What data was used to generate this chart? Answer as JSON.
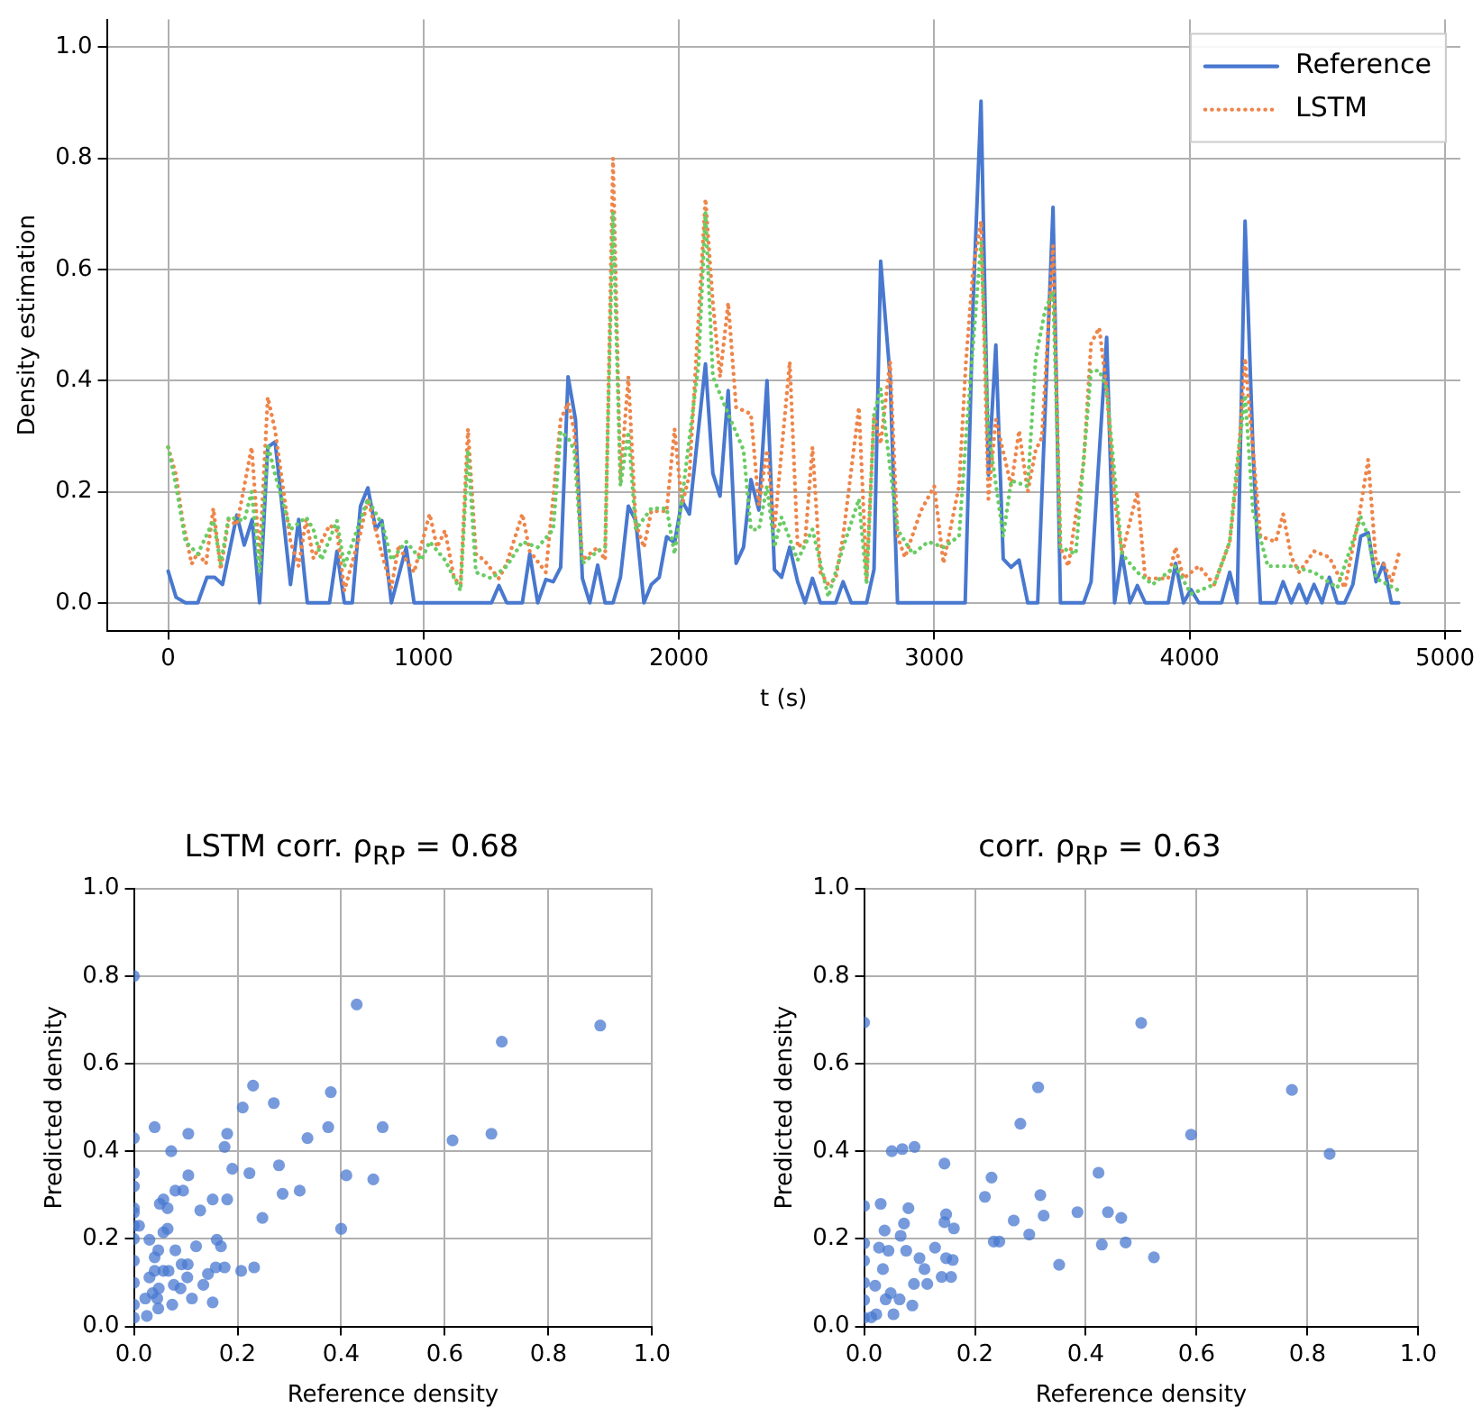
{
  "chart_data": [
    {
      "type": "line",
      "xlabel": "t (s)",
      "ylabel": "Density estimation",
      "xlim": [
        -240,
        5060
      ],
      "ylim": [
        -0.05,
        1.05
      ],
      "xticks": [
        0,
        1000,
        2000,
        3000,
        4000,
        5000
      ],
      "yticks": [
        {
          "value": 0,
          "label": "0.0"
        },
        {
          "value": 0.2,
          "label": "0.2"
        },
        {
          "value": 0.4,
          "label": "0.4"
        },
        {
          "value": 0.6,
          "label": "0.6"
        },
        {
          "value": 0.8,
          "label": "0.8"
        },
        {
          "value": 1,
          "label": "1.0"
        }
      ],
      "grid": true,
      "legend": "top right",
      "marker": "none",
      "series": [
        {
          "name": "Reference",
          "color": "#4878cf",
          "line_style": "solid",
          "x": [
            0,
            31,
            68,
            116,
            152,
            182,
            213,
            269,
            298,
            329,
            358,
            390,
            419,
            479,
            511,
            545,
            632,
            661,
            690,
            721,
            753,
            782,
            813,
            837,
            874,
            932,
            963,
            1266,
            1295,
            1326,
            1387,
            1416,
            1447,
            1479,
            1508,
            1537,
            1566,
            1595,
            1622,
            1651,
            1682,
            1711,
            1742,
            1771,
            1802,
            1831,
            1863,
            1892,
            1923,
            1952,
            1983,
            2012,
            2041,
            2104,
            2133,
            2161,
            2193,
            2224,
            2253,
            2282,
            2313,
            2345,
            2374,
            2402,
            2434,
            2465,
            2494,
            2523,
            2554,
            2614,
            2643,
            2675,
            2735,
            2764,
            2790,
            2827,
            2856,
            3121,
            3152,
            3183,
            3212,
            3241,
            3270,
            3301,
            3332,
            3366,
            3405,
            3465,
            3494,
            3585,
            3614,
            3675,
            3706,
            3735,
            3766,
            3795,
            3826,
            3916,
            3945,
            3976,
            4005,
            4036,
            4125,
            4157,
            4186,
            4217,
            4248,
            4277,
            4337,
            4366,
            4398,
            4429,
            4458,
            4487,
            4518,
            4547,
            4578,
            4607,
            4639,
            4670,
            4699,
            4730,
            4759,
            4790,
            4819
          ],
          "values": [
            0.057,
            0.01,
            0,
            0,
            0.046,
            0.046,
            0.033,
            0.158,
            0.104,
            0.15,
            0,
            0.28,
            0.29,
            0.033,
            0.15,
            0,
            0,
            0.093,
            0,
            0,
            0.174,
            0.207,
            0.132,
            0.148,
            0,
            0.1,
            0,
            0,
            0.031,
            0,
            0,
            0.088,
            0,
            0.042,
            0.038,
            0.064,
            0.407,
            0.33,
            0.044,
            0,
            0.068,
            0,
            0,
            0.046,
            0.174,
            0.148,
            0,
            0.033,
            0.046,
            0.119,
            0.108,
            0.184,
            0.16,
            0.43,
            0.233,
            0.192,
            0.382,
            0.071,
            0.1,
            0.222,
            0.167,
            0.4,
            0.06,
            0.046,
            0.1,
            0.038,
            0,
            0.044,
            0,
            0,
            0.038,
            0,
            0,
            0.06,
            0.615,
            0.407,
            0,
            0,
            0.54,
            0.903,
            0.23,
            0.464,
            0.079,
            0.064,
            0.077,
            0,
            0,
            0.712,
            0,
            0,
            0.038,
            0.478,
            0,
            0.088,
            0,
            0.031,
            0,
            0,
            0.071,
            0,
            0.024,
            0,
            0,
            0.055,
            0,
            0.687,
            0.275,
            0,
            0,
            0.038,
            0,
            0.033,
            0,
            0.033,
            0,
            0.046,
            0,
            0,
            0.033,
            0.12,
            0.126,
            0.038,
            0.071,
            0,
            0
          ]
        },
        {
          "name": "LSTM",
          "color": "#ee854a",
          "line_style": "dotted",
          "x": [
            0,
            31,
            56,
            92,
            116,
            148,
            177,
            206,
            237,
            269,
            327,
            358,
            390,
            419,
            479,
            511,
            540,
            569,
            632,
            661,
            690,
            753,
            782,
            830,
            874,
            903,
            932,
            963,
            1024,
            1053,
            1084,
            1120,
            1145,
            1174,
            1205,
            1237,
            1266,
            1295,
            1326,
            1387,
            1416,
            1479,
            1537,
            1566,
            1590,
            1622,
            1682,
            1711,
            1742,
            1771,
            1802,
            1831,
            1863,
            1892,
            1952,
            1983,
            2012,
            2041,
            2104,
            2133,
            2161,
            2193,
            2224,
            2282,
            2313,
            2345,
            2374,
            2434,
            2465,
            2494,
            2523,
            2554,
            2585,
            2614,
            2643,
            2705,
            2735,
            2764,
            2790,
            2827,
            2856,
            2885,
            2947,
            3000,
            3036,
            3097,
            3124,
            3152,
            3183,
            3212,
            3241,
            3301,
            3332,
            3366,
            3397,
            3421,
            3465,
            3494,
            3525,
            3585,
            3614,
            3646,
            3675,
            3706,
            3735,
            3795,
            3826,
            3916,
            3945,
            3976,
            4036,
            4096,
            4157,
            4188,
            4217,
            4248,
            4277,
            4337,
            4366,
            4398,
            4429,
            4487,
            4547,
            4607,
            4663,
            4699,
            4730,
            4759,
            4790,
            4819
          ],
          "values": [
            0.28,
            0.23,
            0.15,
            0.07,
            0.09,
            0.07,
            0.17,
            0.06,
            0.15,
            0.14,
            0.28,
            0.08,
            0.37,
            0.31,
            0.11,
            0.066,
            0.15,
            0.08,
            0.14,
            0.13,
            0.022,
            0.126,
            0.187,
            0.1,
            0.027,
            0.104,
            0.077,
            0.055,
            0.16,
            0.1,
            0.13,
            0.044,
            0.033,
            0.313,
            0.088,
            0.077,
            0.06,
            0.044,
            0.071,
            0.16,
            0.093,
            0.055,
            0.33,
            0.36,
            0.31,
            0.077,
            0.1,
            0.077,
            0.8,
            0.22,
            0.407,
            0.143,
            0.1,
            0.165,
            0.165,
            0.313,
            0.176,
            0.23,
            0.727,
            0.54,
            0.407,
            0.54,
            0.352,
            0.34,
            0.176,
            0.275,
            0.132,
            0.434,
            0.1,
            0.11,
            0.28,
            0.055,
            0.033,
            0.044,
            0.12,
            0.352,
            0.044,
            0.34,
            0.286,
            0.434,
            0.12,
            0.082,
            0.165,
            0.21,
            0.071,
            0.21,
            0.434,
            0.6,
            0.687,
            0.187,
            0.33,
            0.21,
            0.31,
            0.2,
            0.275,
            0.297,
            0.643,
            0.1,
            0.066,
            0.253,
            0.467,
            0.495,
            0.385,
            0.187,
            0.088,
            0.2,
            0.044,
            0.044,
            0.1,
            0.044,
            0.066,
            0.033,
            0.11,
            0.242,
            0.44,
            0.275,
            0.12,
            0.11,
            0.16,
            0.082,
            0.055,
            0.093,
            0.082,
            0.027,
            0.154,
            0.258,
            0.071,
            0.071,
            0.038,
            0.088
          ]
        },
        {
          "color": "#6acc64",
          "line_style": "dotted",
          "x": [
            0,
            31,
            68,
            116,
            177,
            206,
            237,
            298,
            327,
            358,
            390,
            419,
            479,
            540,
            569,
            600,
            661,
            690,
            782,
            842,
            874,
            932,
            992,
            1024,
            1084,
            1145,
            1174,
            1205,
            1266,
            1326,
            1387,
            1447,
            1508,
            1537,
            1566,
            1590,
            1622,
            1682,
            1711,
            1742,
            1771,
            1802,
            1831,
            1892,
            1952,
            1983,
            2012,
            2077,
            2104,
            2133,
            2193,
            2253,
            2282,
            2313,
            2345,
            2374,
            2402,
            2465,
            2523,
            2585,
            2643,
            2705,
            2735,
            2764,
            2790,
            2856,
            2916,
            2976,
            3036,
            3097,
            3124,
            3183,
            3212,
            3270,
            3301,
            3366,
            3397,
            3434,
            3465,
            3494,
            3554,
            3614,
            3646,
            3675,
            3735,
            3795,
            3855,
            3945,
            4005,
            4096,
            4157,
            4186,
            4217,
            4248,
            4306,
            4398,
            4487,
            4578,
            4670,
            4699,
            4730,
            4819
          ],
          "values": [
            0.28,
            0.21,
            0.11,
            0.088,
            0.148,
            0.07,
            0.154,
            0.148,
            0.2,
            0.055,
            0.286,
            0.23,
            0.132,
            0.154,
            0.132,
            0.077,
            0.148,
            0.066,
            0.187,
            0.137,
            0.077,
            0.11,
            0.077,
            0.11,
            0.077,
            0.022,
            0.275,
            0.055,
            0.044,
            0.066,
            0.11,
            0.1,
            0.132,
            0.308,
            0.297,
            0.275,
            0.071,
            0.093,
            0.1,
            0.703,
            0.21,
            0.308,
            0.132,
            0.17,
            0.17,
            0.088,
            0.187,
            0.43,
            0.703,
            0.407,
            0.34,
            0.275,
            0.132,
            0.132,
            0.21,
            0.1,
            0.154,
            0.077,
            0.132,
            0.011,
            0.1,
            0.187,
            0.033,
            0.34,
            0.385,
            0.132,
            0.088,
            0.11,
            0.1,
            0.12,
            0.297,
            0.648,
            0.308,
            0.12,
            0.22,
            0.21,
            0.44,
            0.527,
            0.56,
            0.1,
            0.088,
            0.418,
            0.418,
            0.385,
            0.088,
            0.055,
            0.033,
            0.066,
            0.016,
            0.033,
            0.11,
            0.253,
            0.374,
            0.165,
            0.066,
            0.066,
            0.055,
            0.027,
            0.154,
            0.12,
            0.044,
            0.022
          ]
        }
      ]
    },
    {
      "type": "scatter",
      "title": "LSTM corr. ρ$_{RP}$ = 0.68",
      "xlabel": "Reference density",
      "ylabel": "Predicted density",
      "xlim": [
        0,
        1
      ],
      "ylim": [
        0,
        1
      ],
      "xticks": [
        {
          "value": 0,
          "label": "0.0"
        },
        {
          "value": 0.2,
          "label": "0.2"
        },
        {
          "value": 0.4,
          "label": "0.4"
        },
        {
          "value": 0.6,
          "label": "0.6"
        },
        {
          "value": 0.8,
          "label": "0.8"
        },
        {
          "value": 1,
          "label": "1.0"
        }
      ],
      "yticks": [
        {
          "value": 0,
          "label": "0.0"
        },
        {
          "value": 0.2,
          "label": "0.2"
        },
        {
          "value": 0.4,
          "label": "0.4"
        },
        {
          "value": 0.6,
          "label": "0.6"
        },
        {
          "value": 0.8,
          "label": "0.8"
        },
        {
          "value": 1,
          "label": "1.0"
        }
      ],
      "grid": true,
      "marker": "circle",
      "series": [
        {
          "color": "#4878d0",
          "x": [
            0,
            0.43,
            0.9,
            0.71,
            0.23,
            0.38,
            0.21,
            0.27,
            0.04,
            0.375,
            0.48,
            0.105,
            0.18,
            0.615,
            0.69,
            0.335,
            0,
            0.175,
            0.072,
            0.28,
            0.19,
            0.223,
            0.41,
            0.462,
            0.105,
            0,
            0.08,
            0.095,
            0.32,
            0.287,
            0.05,
            0.057,
            0.152,
            0.18,
            0.128,
            0.065,
            0.248,
            0,
            0.01,
            0.4,
            0.065,
            0.057,
            0.16,
            0.03,
            0.168,
            0.12,
            0.08,
            0.047,
            0.04,
            0.092,
            0.104,
            0.158,
            0.175,
            0.232,
            0.207,
            0.143,
            0.04,
            0.057,
            0.067,
            0.103,
            0.03,
            0.134,
            0.077,
            0.09,
            0.048,
            0.036,
            0.022,
            0.045,
            0.112,
            0.074,
            0.152,
            0.047,
            0.025,
            0,
            0,
            0,
            0,
            0,
            0,
            0,
            0
          ],
          "values": [
            0.8,
            0.735,
            0.687,
            0.65,
            0.55,
            0.535,
            0.5,
            0.51,
            0.455,
            0.455,
            0.455,
            0.44,
            0.44,
            0.425,
            0.44,
            0.43,
            0.43,
            0.41,
            0.4,
            0.368,
            0.36,
            0.35,
            0.345,
            0.336,
            0.345,
            0.35,
            0.31,
            0.31,
            0.31,
            0.303,
            0.28,
            0.29,
            0.29,
            0.29,
            0.265,
            0.27,
            0.248,
            0.23,
            0.23,
            0.223,
            0.223,
            0.215,
            0.198,
            0.198,
            0.183,
            0.183,
            0.174,
            0.174,
            0.158,
            0.142,
            0.142,
            0.135,
            0.135,
            0.135,
            0.127,
            0.12,
            0.127,
            0.127,
            0.127,
            0.112,
            0.112,
            0.095,
            0.095,
            0.087,
            0.087,
            0.076,
            0.064,
            0.064,
            0.064,
            0.05,
            0.055,
            0.041,
            0.024,
            0.32,
            0.27,
            0.26,
            0.2,
            0.15,
            0.1,
            0.05,
            0.02
          ]
        }
      ]
    },
    {
      "type": "scatter",
      "title": "corr. ρ$_{RP}$ = 0.63",
      "xlabel": "Reference density",
      "ylabel": "Predicted density",
      "xlim": [
        0,
        1
      ],
      "ylim": [
        0,
        1
      ],
      "xticks": [
        {
          "value": 0,
          "label": "0.0"
        },
        {
          "value": 0.2,
          "label": "0.2"
        },
        {
          "value": 0.4,
          "label": "0.4"
        },
        {
          "value": 0.6,
          "label": "0.6"
        },
        {
          "value": 0.8,
          "label": "0.8"
        },
        {
          "value": 1,
          "label": "1.0"
        }
      ],
      "yticks": [
        {
          "value": 0,
          "label": "0.0"
        },
        {
          "value": 0.2,
          "label": "0.2"
        },
        {
          "value": 0.4,
          "label": "0.4"
        },
        {
          "value": 0.6,
          "label": "0.6"
        },
        {
          "value": 0.8,
          "label": "0.8"
        },
        {
          "value": 1,
          "label": "1.0"
        }
      ],
      "grid": true,
      "marker": "circle",
      "series": [
        {
          "color": "#4878d0",
          "x": [
            0,
            0.5,
            0.772,
            0.314,
            0.282,
            0.59,
            0.84,
            0.05,
            0.069,
            0.091,
            0.145,
            0.23,
            0.423,
            0.218,
            0.318,
            0.324,
            0.385,
            0.44,
            0.464,
            0.27,
            0.148,
            0.145,
            0.162,
            0.298,
            0.234,
            0.244,
            0.472,
            0.429,
            0.523,
            0.352,
            0.03,
            0.08,
            0,
            0.037,
            0.072,
            0.066,
            0.128,
            0.148,
            0.16,
            0.157,
            0.14,
            0.1,
            0.109,
            0.076,
            0.044,
            0.027,
            0.034,
            0.048,
            0.02,
            0.039,
            0.064,
            0.087,
            0.013,
            0.022,
            0.053,
            0.09,
            0.114,
            0,
            0,
            0,
            0,
            0
          ],
          "values": [
            0.694,
            0.693,
            0.54,
            0.546,
            0.463,
            0.438,
            0.394,
            0.4,
            0.405,
            0.41,
            0.372,
            0.34,
            0.351,
            0.296,
            0.3,
            0.253,
            0.261,
            0.261,
            0.248,
            0.242,
            0.256,
            0.238,
            0.224,
            0.21,
            0.194,
            0.194,
            0.192,
            0.187,
            0.158,
            0.141,
            0.28,
            0.27,
            0.275,
            0.219,
            0.235,
            0.207,
            0.18,
            0.156,
            0.152,
            0.113,
            0.113,
            0.156,
            0.131,
            0.173,
            0.173,
            0.18,
            0.131,
            0.076,
            0.093,
            0.062,
            0.062,
            0.048,
            0.021,
            0.028,
            0.028,
            0.097,
            0.097,
            0.19,
            0.15,
            0.1,
            0.06,
            0.02
          ]
        }
      ]
    }
  ]
}
